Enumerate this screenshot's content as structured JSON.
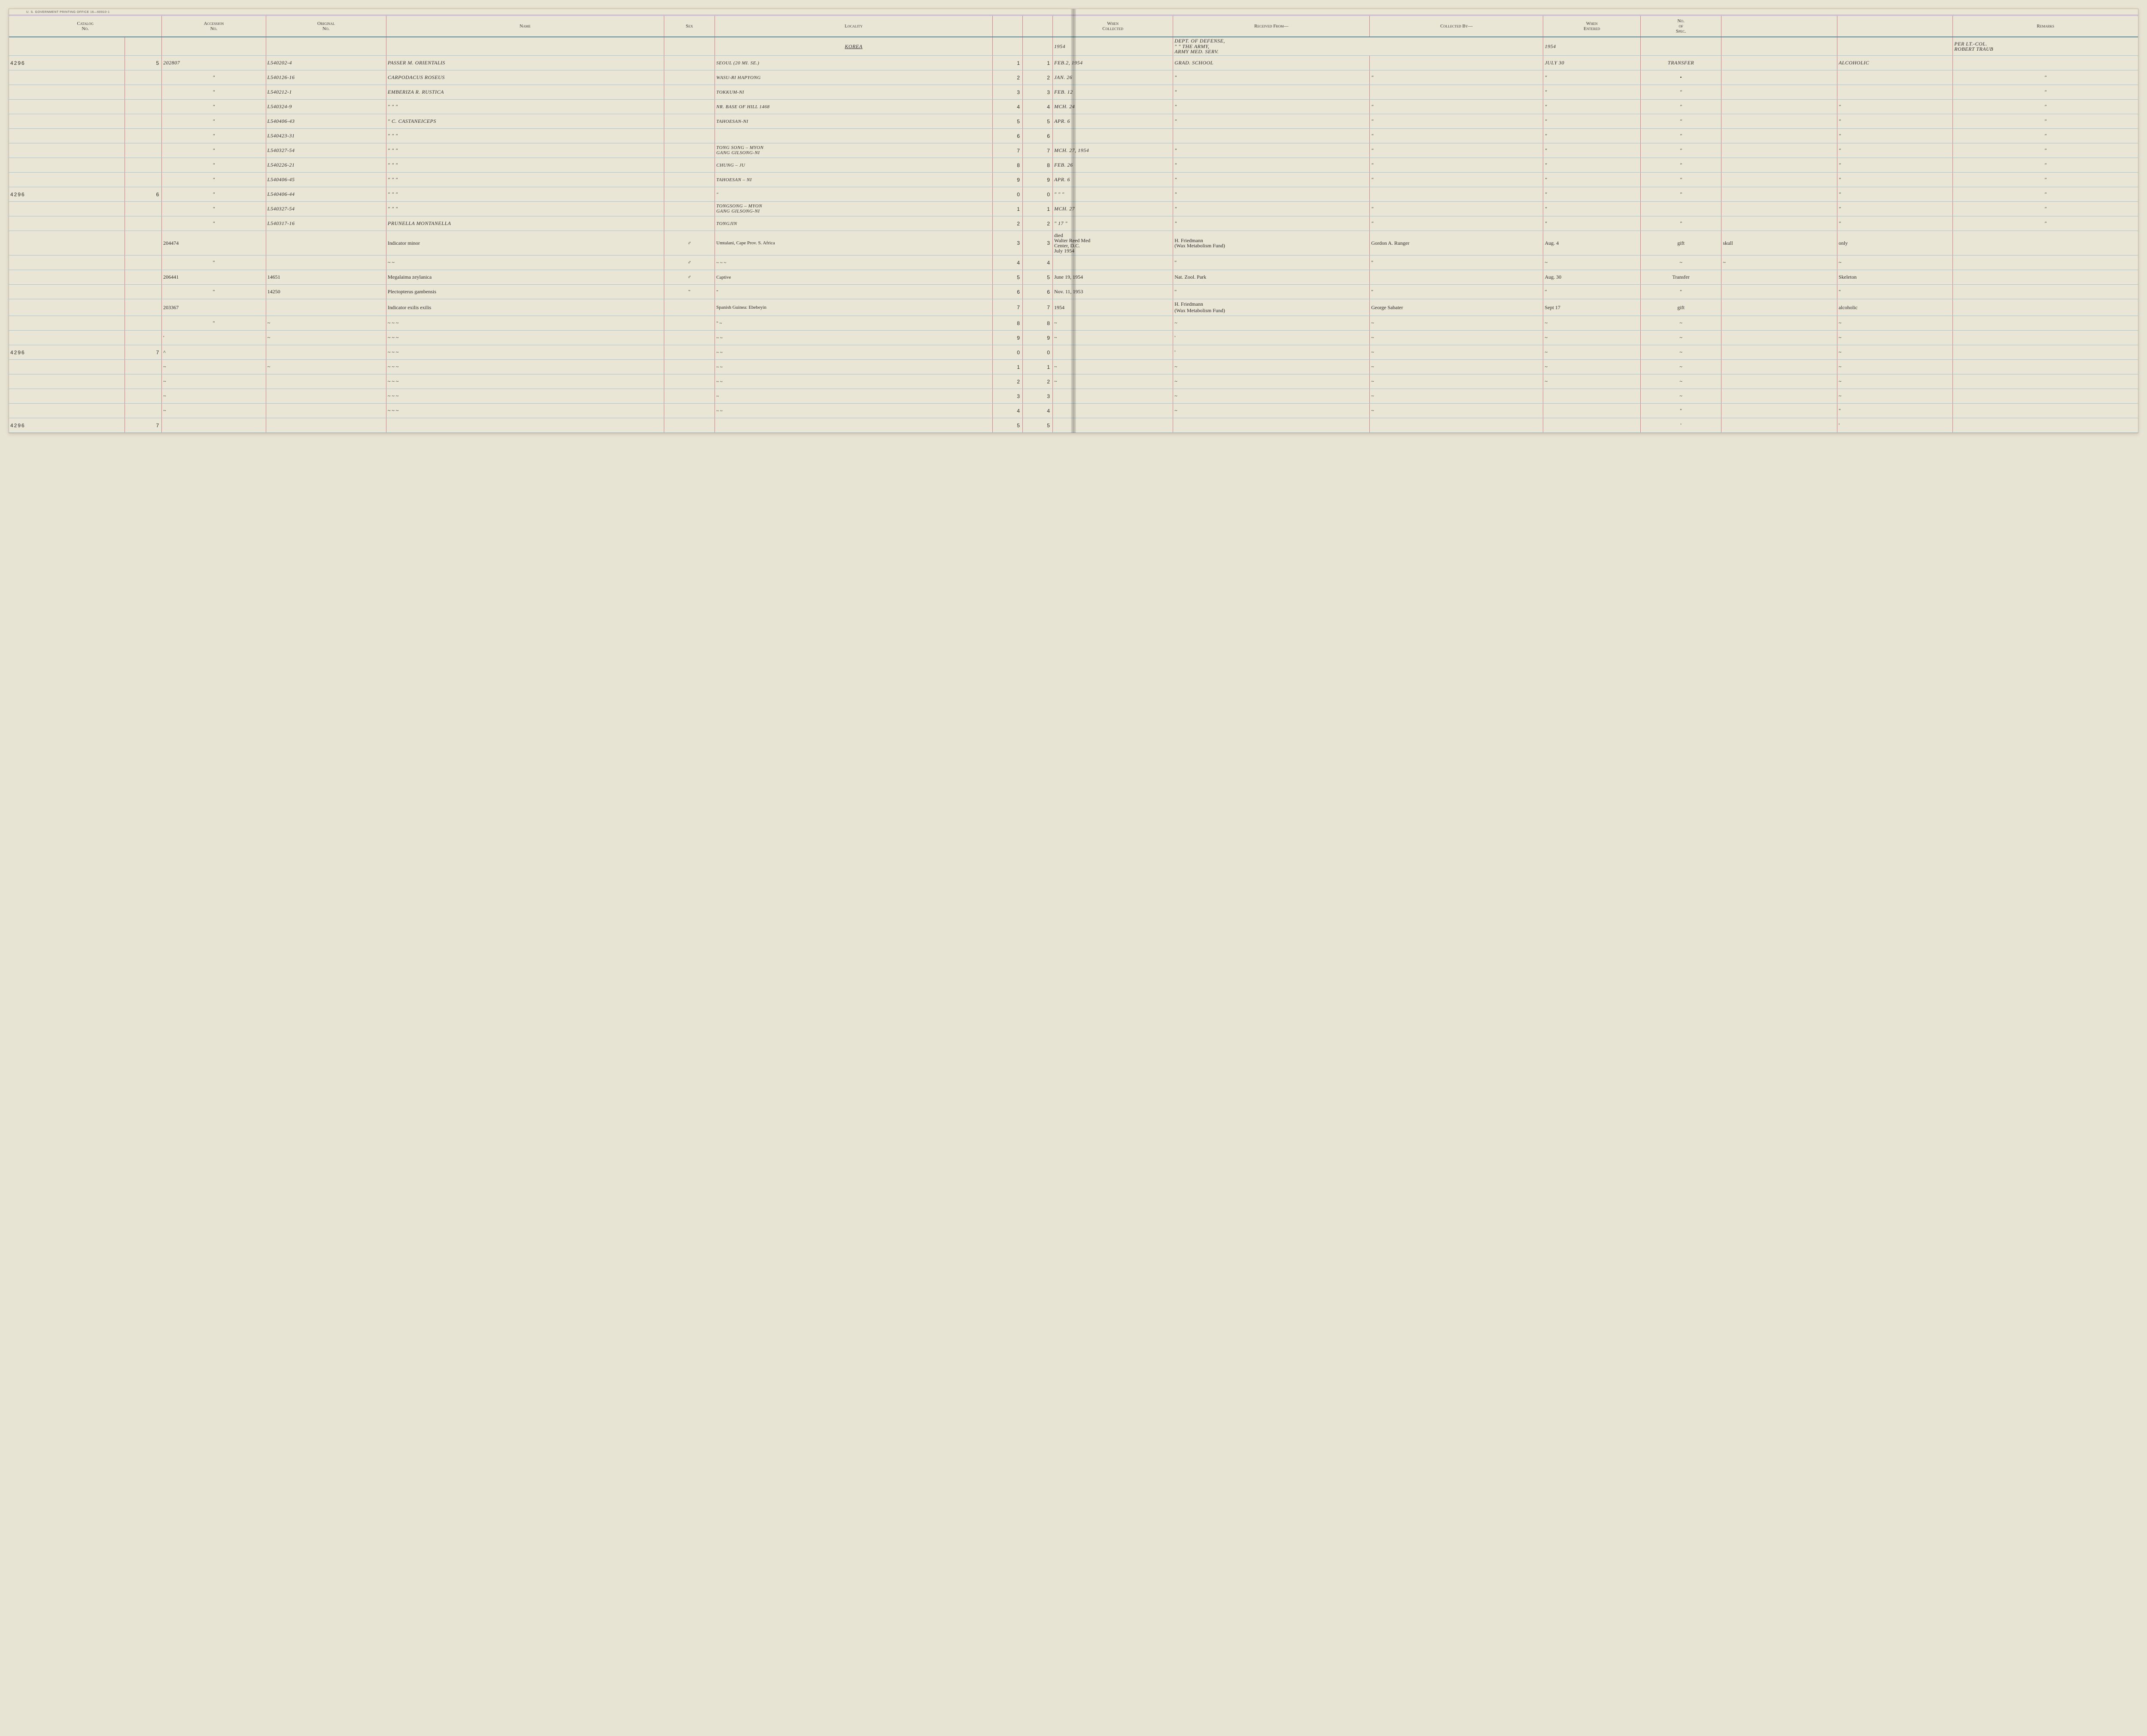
{
  "printer_note": "U. S. GOVERNMENT PRINTING OFFICE   16—60910-1",
  "columns": {
    "catalog": "Catalog\nNo.",
    "accession": "Accession\nNo.",
    "original": "Original\nNo.",
    "name": "Name",
    "sex": "Sex",
    "locality": "Locality",
    "rownum_l": "",
    "rownum_r": "",
    "when_collected": "When\nCollected",
    "received_from": "Received From—",
    "collected_by": "Collected By—",
    "when_entered": "When\nEntered",
    "no_spec": "No.\nof\nSpec.",
    "col_a": "",
    "col_b": "",
    "remarks": "Remarks"
  },
  "col_widths": {
    "catalog_prefix": "5.0%",
    "catalog_digit": "1.6%",
    "accession": "4.5%",
    "original": "5.2%",
    "name": "12%",
    "sex": "2.2%",
    "locality": "12%",
    "rownum_l": "1.3%",
    "rownum_r": "1.3%",
    "when_collected": "5.2%",
    "received_from": "8.5%",
    "collected_by": "7.5%",
    "when_entered": "4.2%",
    "no_spec": "3.5%",
    "col_a": "5%",
    "col_b": "5%",
    "remarks": "8%"
  },
  "colors": {
    "paper": "#eae6d6",
    "rule_blue": "#a8c4d0",
    "rule_red": "#d4788a",
    "rule_purple": "#b8a8d0",
    "ink": "#2a2a2a"
  },
  "header_row": {
    "locality": "KOREA",
    "when_collected": "1954",
    "received_from": "DEPT. OF DEFENSE,\n\" \" THE ARMY,\nARMY MED. SERV.",
    "when_entered": "1954",
    "remarks": "PER LT.-COL.\nROBERT TRAUB"
  },
  "rows": [
    {
      "catalog_prefix": "4296",
      "catalog_digit": "5",
      "rownum": "1",
      "accession": "202807",
      "original": "L540202-4",
      "name": "PASSER M. ORIENTALIS",
      "sex": "",
      "locality": "SEOUL (20 MI. SE.)",
      "when_collected": "FEB.2, 1954",
      "received_from": "GRAD. SCHOOL",
      "collected_by": "",
      "when_entered": "JULY 30",
      "no_spec": "TRANSFER",
      "col_a": "",
      "col_b": "ALCOHOLIC",
      "remarks": "",
      "style": "caps"
    },
    {
      "catalog_digit": "",
      "rownum": "2",
      "accession": "\"",
      "original": "L540126-16",
      "name": "CARPODACUS ROSEUS",
      "sex": "",
      "locality": "WASU-RI HAPYONG",
      "when_collected": "JAN. 26",
      "received_from": "\"",
      "collected_by": "\"",
      "when_entered": "\"",
      "no_spec": "•",
      "col_a": "",
      "col_b": "",
      "remarks": "\"",
      "style": "caps"
    },
    {
      "catalog_digit": "",
      "rownum": "3",
      "accession": "\"",
      "original": "L540212-1",
      "name": "EMBERIZA R. RUSTICA",
      "sex": "",
      "locality": "TOKKUM-NI",
      "when_collected": "FEB. 12",
      "received_from": "\"",
      "collected_by": "",
      "when_entered": "\"",
      "no_spec": "\"",
      "col_a": "",
      "col_b": "",
      "remarks": "\"",
      "style": "caps"
    },
    {
      "catalog_digit": "",
      "rownum": "4",
      "accession": "\"",
      "original": "L540324-9",
      "name": "\"   \"   \"",
      "sex": "",
      "locality": "NR. BASE OF HILL 1468",
      "when_collected": "MCH. 24",
      "received_from": "\"",
      "collected_by": "\"",
      "when_entered": "\"",
      "no_spec": "\"",
      "col_a": "",
      "col_b": "\"",
      "remarks": "\"",
      "style": "caps"
    },
    {
      "catalog_digit": "",
      "rownum": "5",
      "accession": "\"",
      "original": "L540406-43",
      "name": "\"   C. CASTANEICEPS",
      "sex": "",
      "locality": "TAHOESAN-NI",
      "when_collected": "APR. 6",
      "received_from": "\"",
      "collected_by": "\"",
      "when_entered": "\"",
      "no_spec": "\"",
      "col_a": "",
      "col_b": "\"",
      "remarks": "\"",
      "style": "caps"
    },
    {
      "catalog_digit": "",
      "rownum": "6",
      "accession": "\"",
      "original": "L540423-31",
      "name": "\"   \"   \"",
      "sex": "",
      "locality": "",
      "when_collected": "",
      "received_from": "",
      "collected_by": "\"",
      "when_entered": "\"",
      "no_spec": "\"",
      "col_a": "",
      "col_b": "\"",
      "remarks": "\"",
      "style": "caps"
    },
    {
      "catalog_digit": "",
      "rownum": "7",
      "accession": "\"",
      "original": "L540327-54",
      "name": "\"   \"   \"",
      "sex": "",
      "locality": "TONG SONG – MYON\nGANG GILSONG-NI",
      "when_collected": "MCH. 27, 1954",
      "received_from": "\"",
      "collected_by": "\"",
      "when_entered": "\"",
      "no_spec": "\"",
      "col_a": "",
      "col_b": "\"",
      "remarks": "\"",
      "style": "caps",
      "two_line": true
    },
    {
      "catalog_digit": "",
      "rownum": "8",
      "accession": "\"",
      "original": "L540226-21",
      "name": "\"   \"   \"",
      "sex": "",
      "locality": "CHUNG – JU",
      "when_collected": "FEB. 26",
      "received_from": "\"",
      "collected_by": "\"",
      "when_entered": "\"",
      "no_spec": "\"",
      "col_a": "",
      "col_b": "\"",
      "remarks": "\"",
      "style": "caps"
    },
    {
      "catalog_digit": "",
      "rownum": "9",
      "accession": "\"",
      "original": "L540406-45",
      "name": "\"   \"   \"",
      "sex": "",
      "locality": "TAHOESAN – NI",
      "when_collected": "APR. 6",
      "received_from": "\"",
      "collected_by": "\"",
      "when_entered": "\"",
      "no_spec": "\"",
      "col_a": "",
      "col_b": "\"",
      "remarks": "\"",
      "style": "caps"
    },
    {
      "catalog_prefix": "4296",
      "catalog_digit": "6",
      "rownum": "0",
      "accession": "\"",
      "original": "L540406-44",
      "name": "\"   \"   \"",
      "sex": "",
      "locality": "\"",
      "when_collected": "\"  \"  \"",
      "received_from": "\"",
      "collected_by": "",
      "when_entered": "\"",
      "no_spec": "\"",
      "col_a": "",
      "col_b": "\"",
      "remarks": "\"",
      "style": "caps"
    },
    {
      "catalog_digit": "",
      "rownum": "1",
      "accession": "\"",
      "original": "L540327-54",
      "name": "\"   \"   \"",
      "sex": "",
      "locality": "TONGSONG – MYON\nGANG GILSONG-NI",
      "when_collected": "MCH. 27",
      "received_from": "\"",
      "collected_by": "\"",
      "when_entered": "\"",
      "no_spec": "",
      "col_a": "",
      "col_b": "\"",
      "remarks": "\"",
      "style": "caps",
      "two_line": true
    },
    {
      "catalog_digit": "",
      "rownum": "2",
      "accession": "\"",
      "original": "L540317-16",
      "name": "PRUNELLA MONTANELLA",
      "sex": "",
      "locality": "TONGJIN",
      "when_collected": "\"  17  \"",
      "received_from": "\"",
      "collected_by": "\"",
      "when_entered": "\"",
      "no_spec": "\"",
      "col_a": "",
      "col_b": "\"",
      "remarks": "\"",
      "style": "caps"
    },
    {
      "catalog_digit": "",
      "rownum": "3",
      "accession": "204474",
      "original": "",
      "name": "Indicator minor",
      "sex": "♂",
      "locality": "Umtalani, Cape Prov. S. Africa",
      "when_collected": "died\nWalter Reed Med\nCenter, D.C.\nJuly 1954",
      "received_from": "H. Friedmann\n(Wax Metabolism Fund)",
      "collected_by": "Gordon A. Runger",
      "when_entered": "Aug. 4",
      "no_spec": "gift",
      "col_a": "skull",
      "col_b": "only",
      "remarks": "",
      "style": "script",
      "small": true
    },
    {
      "catalog_digit": "",
      "rownum": "4",
      "accession": "\"",
      "original": "",
      "name": "~      ~",
      "sex": "♂",
      "locality": "~   ~   ~",
      "when_collected": "",
      "received_from": "\"",
      "collected_by": "\"",
      "when_entered": "~",
      "no_spec": "~",
      "col_a": "~",
      "col_b": "~",
      "remarks": "",
      "style": "script"
    },
    {
      "catalog_digit": "",
      "rownum": "5",
      "accession": "206441",
      "original": "14651",
      "name": "Megalaima zeylanica",
      "sex": "♂",
      "locality": "Captive",
      "when_collected": "June 19, 1954",
      "received_from": "Nat. Zool. Park",
      "collected_by": "",
      "when_entered": "Aug. 30",
      "no_spec": "Transfer",
      "col_a": "",
      "col_b": "Skeleton",
      "remarks": "",
      "style": "script"
    },
    {
      "catalog_digit": "",
      "rownum": "6",
      "accession": "\"",
      "original": "14250",
      "name": "Plectopterus gambensis",
      "sex": "\"",
      "locality": "\"",
      "when_collected": "Nov. 11, 1953",
      "received_from": "\"",
      "collected_by": "\"",
      "when_entered": "\"",
      "no_spec": "\"",
      "col_a": "",
      "col_b": "\"",
      "remarks": "",
      "style": "script"
    },
    {
      "catalog_digit": "",
      "rownum": "7",
      "accession": "203367",
      "original": "",
      "name": "Indicator exilis exilis",
      "sex": "",
      "locality": "Spanish Guinea: Ebebeyin",
      "when_collected": "1954",
      "received_from": "H. Friedmann\n(Wax Metabolism Fund)",
      "collected_by": "George Sabater",
      "when_entered": "Sept 17",
      "no_spec": "gift",
      "col_a": "",
      "col_b": "alcoholic",
      "remarks": "",
      "style": "script"
    },
    {
      "catalog_digit": "",
      "rownum": "8",
      "accession": "\"",
      "original": "~",
      "name": "~   ~   ~",
      "sex": "",
      "locality": "\"   ~",
      "when_collected": "~",
      "received_from": "~",
      "collected_by": "~",
      "when_entered": "~",
      "no_spec": "~",
      "col_a": "",
      "col_b": "~",
      "remarks": "",
      "style": "script"
    },
    {
      "catalog_digit": "",
      "rownum": "9",
      "accession": "'",
      "original": "~",
      "name": "~   ~   ~",
      "sex": "",
      "locality": "~   ~",
      "when_collected": "~",
      "received_from": "'",
      "collected_by": "~",
      "when_entered": "~",
      "no_spec": "~",
      "col_a": "",
      "col_b": "~",
      "remarks": "",
      "style": "script"
    },
    {
      "catalog_prefix": "4296",
      "catalog_digit": "7",
      "rownum": "0",
      "accession": "^",
      "original": "",
      "name": "~   ~   ~",
      "sex": "",
      "locality": "~   ~",
      "when_collected": "",
      "received_from": "'",
      "collected_by": "~",
      "when_entered": "~",
      "no_spec": "~",
      "col_a": "",
      "col_b": "~",
      "remarks": "",
      "style": "script"
    },
    {
      "catalog_digit": "",
      "rownum": "1",
      "accession": "~",
      "original": "~",
      "name": "~   ~   ~",
      "sex": "",
      "locality": "~   ~",
      "when_collected": "~",
      "received_from": "~",
      "collected_by": "~",
      "when_entered": "~",
      "no_spec": "~",
      "col_a": "",
      "col_b": "~",
      "remarks": "",
      "style": "script"
    },
    {
      "catalog_digit": "",
      "rownum": "2",
      "accession": "~",
      "original": "",
      "name": "~   ~   ~",
      "sex": "",
      "locality": "~   ~",
      "when_collected": "~",
      "received_from": "~",
      "collected_by": "~",
      "when_entered": "~",
      "no_spec": "~",
      "col_a": "",
      "col_b": "~",
      "remarks": "",
      "style": "script"
    },
    {
      "catalog_digit": "",
      "rownum": "3",
      "accession": "~",
      "original": "",
      "name": "~   ~   ~",
      "sex": "",
      "locality": "~",
      "when_collected": "",
      "received_from": "~",
      "collected_by": "~",
      "when_entered": "",
      "no_spec": "~",
      "col_a": "",
      "col_b": "~",
      "remarks": "",
      "style": "script"
    },
    {
      "catalog_digit": "",
      "rownum": "4",
      "accession": "~",
      "original": "",
      "name": "~   ~   ~",
      "sex": "",
      "locality": "~    ~",
      "when_collected": "",
      "received_from": "~",
      "collected_by": "~",
      "when_entered": "",
      "no_spec": "\"",
      "col_a": "",
      "col_b": "\"",
      "remarks": "",
      "style": "script"
    },
    {
      "catalog_prefix": "4296",
      "catalog_digit": "7",
      "rownum": "5",
      "accession": "",
      "original": "",
      "name": "",
      "sex": "",
      "locality": "",
      "when_collected": "",
      "received_from": "",
      "collected_by": "",
      "when_entered": "",
      "no_spec": "'",
      "col_a": "",
      "col_b": "'",
      "remarks": "",
      "style": "script"
    }
  ]
}
